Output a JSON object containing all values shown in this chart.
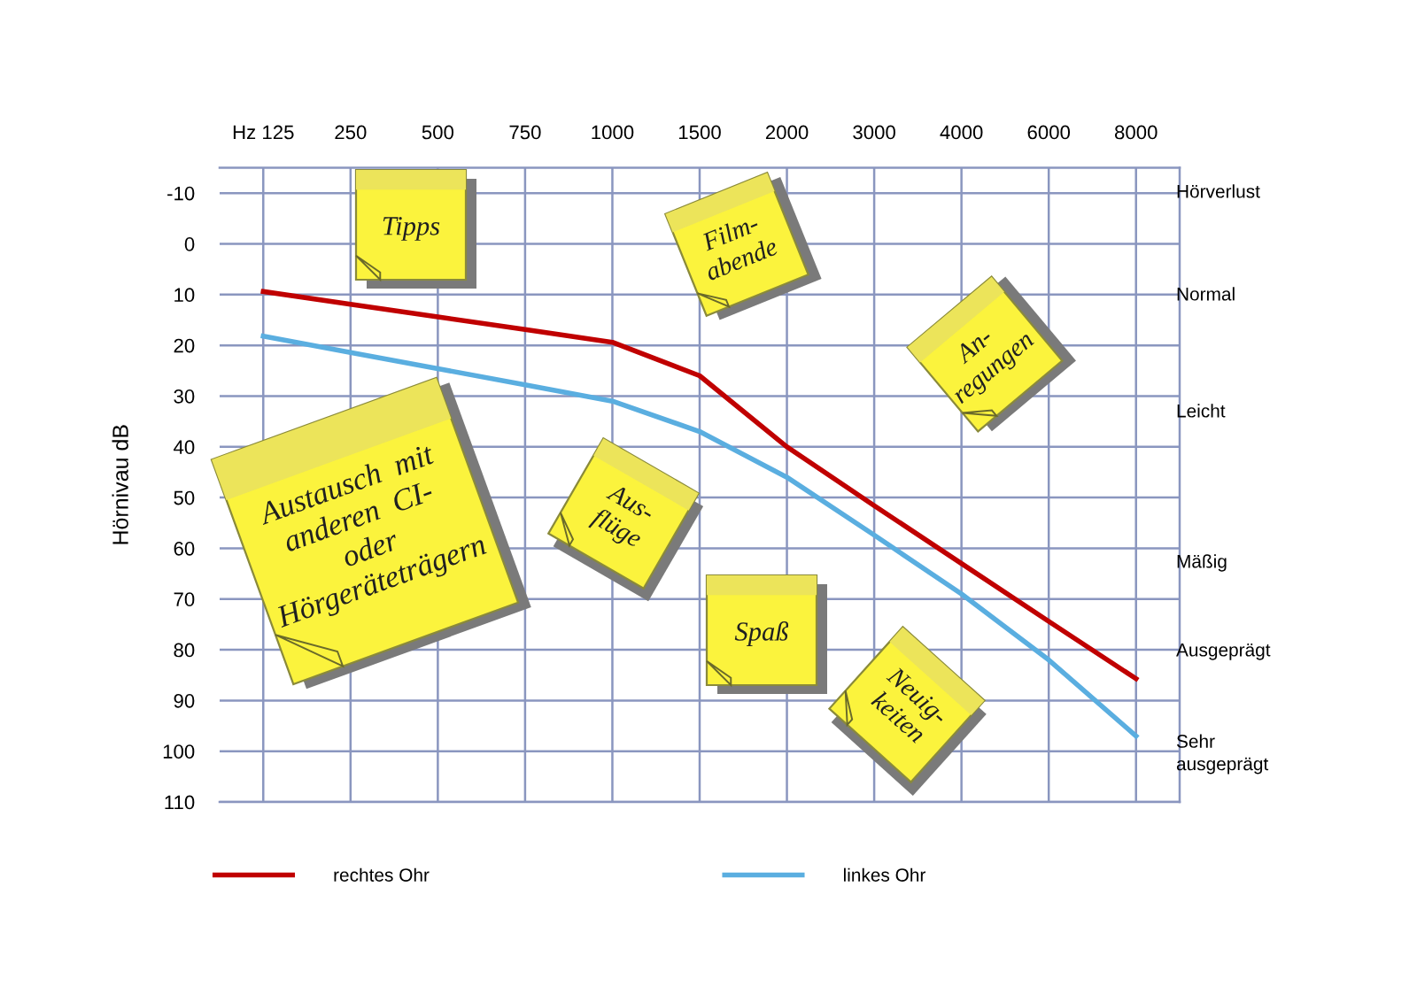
{
  "chart_data": {
    "type": "line",
    "ylabel": "Hörnivau dB",
    "categories": [
      "Hz 125",
      "250",
      "500",
      "750",
      "1000",
      "1500",
      "2000",
      "3000",
      "4000",
      "6000",
      "8000"
    ],
    "ylim": [
      110,
      -15
    ],
    "yticks": [
      -10,
      0,
      10,
      20,
      30,
      40,
      50,
      60,
      70,
      80,
      90,
      100,
      110
    ],
    "series": [
      {
        "name": "rechtes Ohr",
        "color": "#c00000",
        "values": [
          9.4,
          11.9,
          14.4,
          16.9,
          19.4,
          26,
          40,
          51.6,
          63,
          74.4,
          85.7
        ]
      },
      {
        "name": "linkes Ohr",
        "color": "#5aaee0",
        "values": [
          18.2,
          21.4,
          24.6,
          27.8,
          31,
          37,
          46,
          57.4,
          69,
          82,
          97
        ]
      }
    ],
    "grid": true,
    "legend": "bottom",
    "marker": "none",
    "line_style": "solid",
    "annotations": [
      "Hörverlust",
      "Normal",
      "Leicht",
      "Mäßig",
      "Ausgeprägt",
      "Sehr\nausgeprägt",
      "Tipps",
      "Film-\nabende",
      "An-\nregungen",
      "Aus-\nflüge",
      "Austausch  mit\nanderen  CI-\noder\nHörgeräteträgern",
      "Spaß",
      "Neuig-\nkeiten"
    ]
  }
}
